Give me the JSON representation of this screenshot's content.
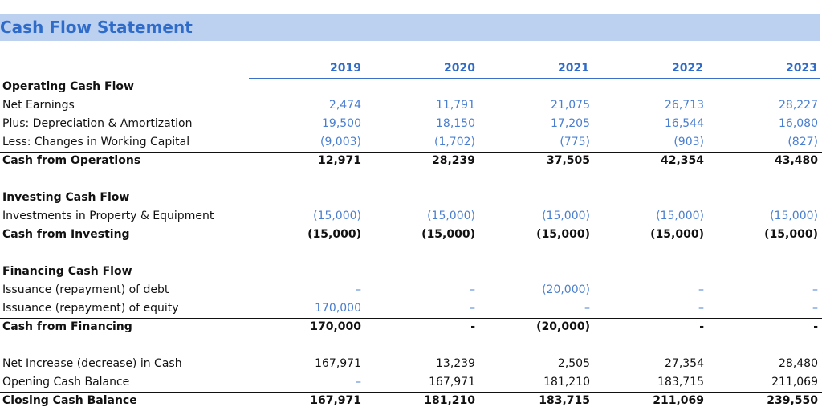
{
  "title": "Cash Flow Statement",
  "years": [
    "2019",
    "2020",
    "2021",
    "2022",
    "2023"
  ],
  "operating": {
    "header": "Operating Cash Flow",
    "net_earnings": {
      "label": "Net Earnings",
      "values": [
        "2,474",
        "11,791",
        "21,075",
        "26,713",
        "28,227"
      ]
    },
    "depreciation": {
      "label": "Plus: Depreciation & Amortization",
      "values": [
        "19,500",
        "18,150",
        "17,205",
        "16,544",
        "16,080"
      ]
    },
    "working_capital": {
      "label": "Less: Changes in Working Capital",
      "values": [
        "(9,003)",
        "(1,702)",
        "(775)",
        "(903)",
        "(827)"
      ]
    },
    "total": {
      "label": "Cash from Operations",
      "values": [
        "12,971",
        "28,239",
        "37,505",
        "42,354",
        "43,480"
      ]
    }
  },
  "investing": {
    "header": "Investing Cash Flow",
    "ppe": {
      "label": "Investments in Property & Equipment",
      "values": [
        "(15,000)",
        "(15,000)",
        "(15,000)",
        "(15,000)",
        "(15,000)"
      ]
    },
    "total": {
      "label": "Cash from Investing",
      "values": [
        "(15,000)",
        "(15,000)",
        "(15,000)",
        "(15,000)",
        "(15,000)"
      ]
    }
  },
  "financing": {
    "header": "Financing Cash Flow",
    "debt": {
      "label": "Issuance (repayment) of debt",
      "values": [
        "–",
        "–",
        "(20,000)",
        "–",
        "–"
      ]
    },
    "equity": {
      "label": "Issuance (repayment) of equity",
      "values": [
        "170,000",
        "–",
        "–",
        "–",
        "–"
      ]
    },
    "total": {
      "label": "Cash from Financing",
      "values": [
        "170,000",
        "-",
        "(20,000)",
        "-",
        "-"
      ]
    }
  },
  "summary": {
    "net_increase": {
      "label": "Net Increase (decrease) in Cash",
      "values": [
        "167,971",
        "13,239",
        "2,505",
        "27,354",
        "28,480"
      ]
    },
    "opening": {
      "label": "Opening Cash Balance",
      "values": [
        "–",
        "167,971",
        "181,210",
        "183,715",
        "211,069"
      ]
    },
    "closing": {
      "label": "Closing Cash Balance",
      "values": [
        "167,971",
        "181,210",
        "183,715",
        "211,069",
        "239,550"
      ]
    }
  },
  "colors": {
    "title_band": "#bcd0f0",
    "title_text": "#2f6cc9",
    "input_blue": "#4a7fd0",
    "rule_blue": "#3a70c7"
  }
}
